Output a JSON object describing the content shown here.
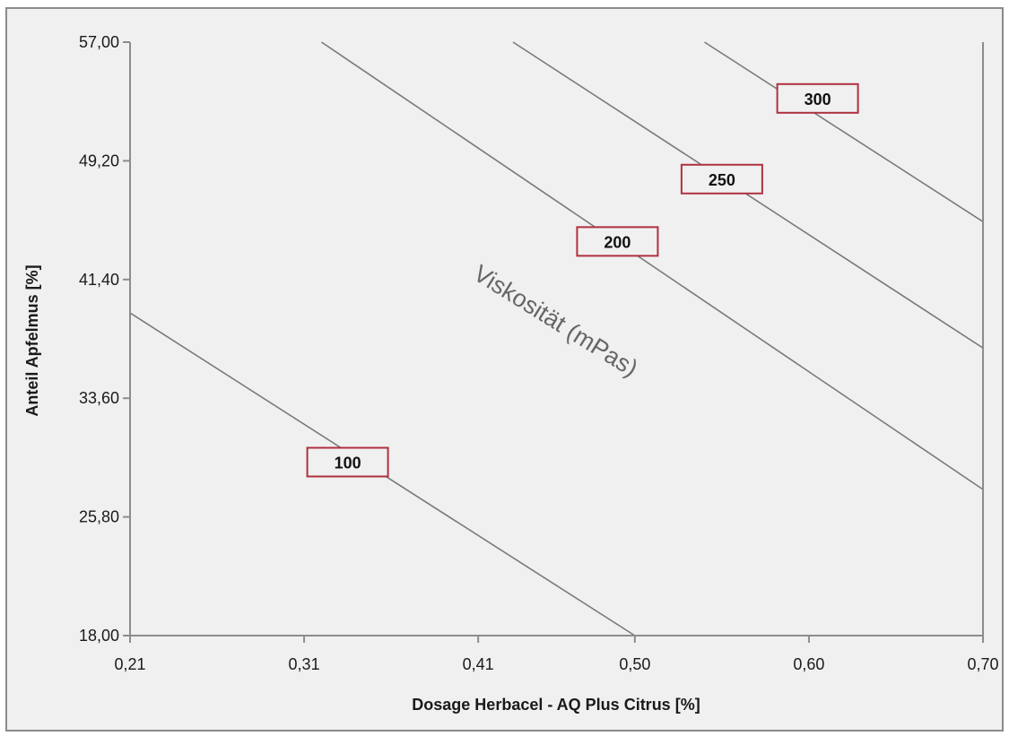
{
  "chart_data": {
    "type": "contour",
    "title": "",
    "xlabel": "Dosage Herbacel - AQ Plus Citrus [%]",
    "ylabel": "Anteil Apfelmus [%]",
    "annotation": "Viskosität (mPas)",
    "xlim": [
      0.21,
      0.7
    ],
    "ylim": [
      18.0,
      57.0
    ],
    "x_ticks": [
      0.21,
      0.31,
      0.41,
      0.5,
      0.6,
      0.7
    ],
    "x_tick_labels": [
      "0,21",
      "0,31",
      "0,41",
      "0,50",
      "0,60",
      "0,70"
    ],
    "y_ticks": [
      18.0,
      25.8,
      33.6,
      41.4,
      49.2,
      57.0
    ],
    "y_tick_labels": [
      "18,00",
      "25,80",
      "33,60",
      "41,40",
      "49,20",
      "57,00"
    ],
    "grid": false,
    "colors": {
      "contour": "#7a7a7a",
      "label_border": "#b0303f",
      "axis": "#8c8c8c",
      "background": "#f0f0f0"
    },
    "contours": [
      {
        "level": 100,
        "label": "100",
        "points": [
          [
            0.21,
            39.2
          ],
          [
            0.5,
            18.0
          ]
        ],
        "label_at": [
          0.335,
          29.4
        ]
      },
      {
        "level": 200,
        "label": "200",
        "points": [
          [
            0.32,
            57.0
          ],
          [
            0.7,
            27.6
          ]
        ],
        "label_at": [
          0.49,
          43.9
        ]
      },
      {
        "level": 250,
        "label": "250",
        "points": [
          [
            0.43,
            57.0
          ],
          [
            0.7,
            36.9
          ]
        ],
        "label_at": [
          0.55,
          48.0
        ]
      },
      {
        "level": 300,
        "label": "300",
        "points": [
          [
            0.54,
            57.0
          ],
          [
            0.7,
            45.2
          ]
        ],
        "label_at": [
          0.605,
          53.3
        ]
      }
    ]
  }
}
